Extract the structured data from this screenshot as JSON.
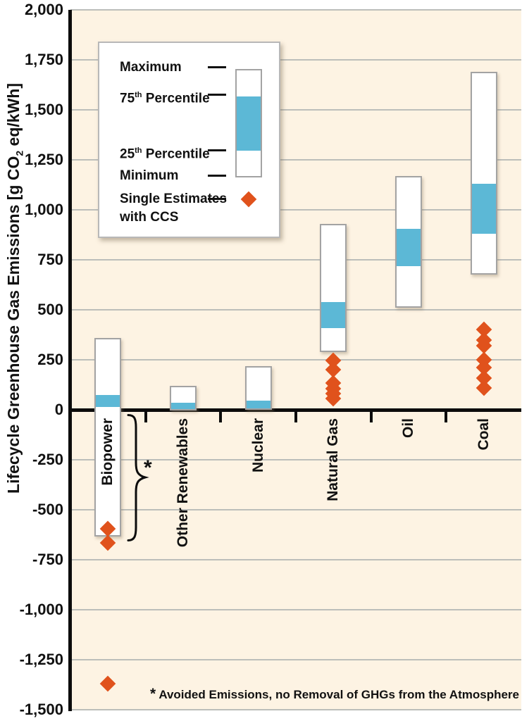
{
  "figure": {
    "y_axis": {
      "title_prefix": "Lifecycle Greenhouse Gas Emissions [g CO",
      "title_sub": "2",
      "title_suffix": " eq/kWh]",
      "tick_labels": [
        "2,000",
        "1,750",
        "1,500",
        "1,250",
        "1,000",
        "750",
        "500",
        "250",
        "0",
        "-250",
        "-500",
        "-750",
        "-1,000",
        "-1,250",
        "-1,500"
      ]
    },
    "legend": {
      "maximum": "Maximum",
      "p75_num": "75",
      "p75_sup": "th",
      "p75_rest": " Percentile",
      "p25_num": "25",
      "p25_sup": "th",
      "p25_rest": " Percentile",
      "minimum": "Minimum",
      "single_line1": "Single Estimates",
      "single_line2": "with CCS"
    },
    "annotation_star": "*",
    "footnote_star": "*",
    "footnote_text": " Avoided Emissions, no Removal of GHGs from the Atmosphere"
  },
  "chart_data": {
    "type": "bar",
    "subtype": "min-max-percentile-ranges",
    "title": "",
    "xlabel": "",
    "ylabel": "Lifecycle Greenhouse Gas Emissions [g CO2 eq/kWh]",
    "ylim": [
      -1500,
      2000
    ],
    "ytick_step": 250,
    "grid": true,
    "legend_position": "upper-left",
    "categories": [
      "Biopower",
      "Other Renewables",
      "Nuclear",
      "Natural Gas",
      "Oil",
      "Coal"
    ],
    "series": [
      {
        "name": "Biopower",
        "min": -633,
        "p25": 15,
        "p75": 75,
        "max": 360,
        "ccs_single_estimates": [
          -594,
          -667,
          -1370
        ],
        "note": "* Avoided Emissions, no Removal of GHGs from the Atmosphere"
      },
      {
        "name": "Other Renewables",
        "min": -5,
        "p25": 5,
        "p75": 35,
        "max": 120,
        "ccs_single_estimates": []
      },
      {
        "name": "Nuclear",
        "min": 1,
        "p25": 8,
        "p75": 45,
        "max": 220,
        "ccs_single_estimates": []
      },
      {
        "name": "Natural Gas",
        "min": 290,
        "p25": 410,
        "p75": 540,
        "max": 930,
        "ccs_single_estimates": [
          245,
          200,
          135,
          105,
          80,
          58
        ]
      },
      {
        "name": "Oil",
        "min": 510,
        "p25": 720,
        "p75": 905,
        "max": 1170,
        "ccs_single_estimates": []
      },
      {
        "name": "Coal",
        "min": 675,
        "p25": 880,
        "p75": 1130,
        "max": 1690,
        "ccs_single_estimates": [
          400,
          350,
          320,
          250,
          210,
          160,
          110
        ]
      }
    ],
    "colors": {
      "background": "#fdf3e3",
      "box_fill": "#ffffff",
      "box_border": "#a3a3a3",
      "iqr_fill": "#5cb8d6",
      "diamond": "#e0521c",
      "gridline": "#bcbeba",
      "axis": "#0c0c0c"
    }
  }
}
